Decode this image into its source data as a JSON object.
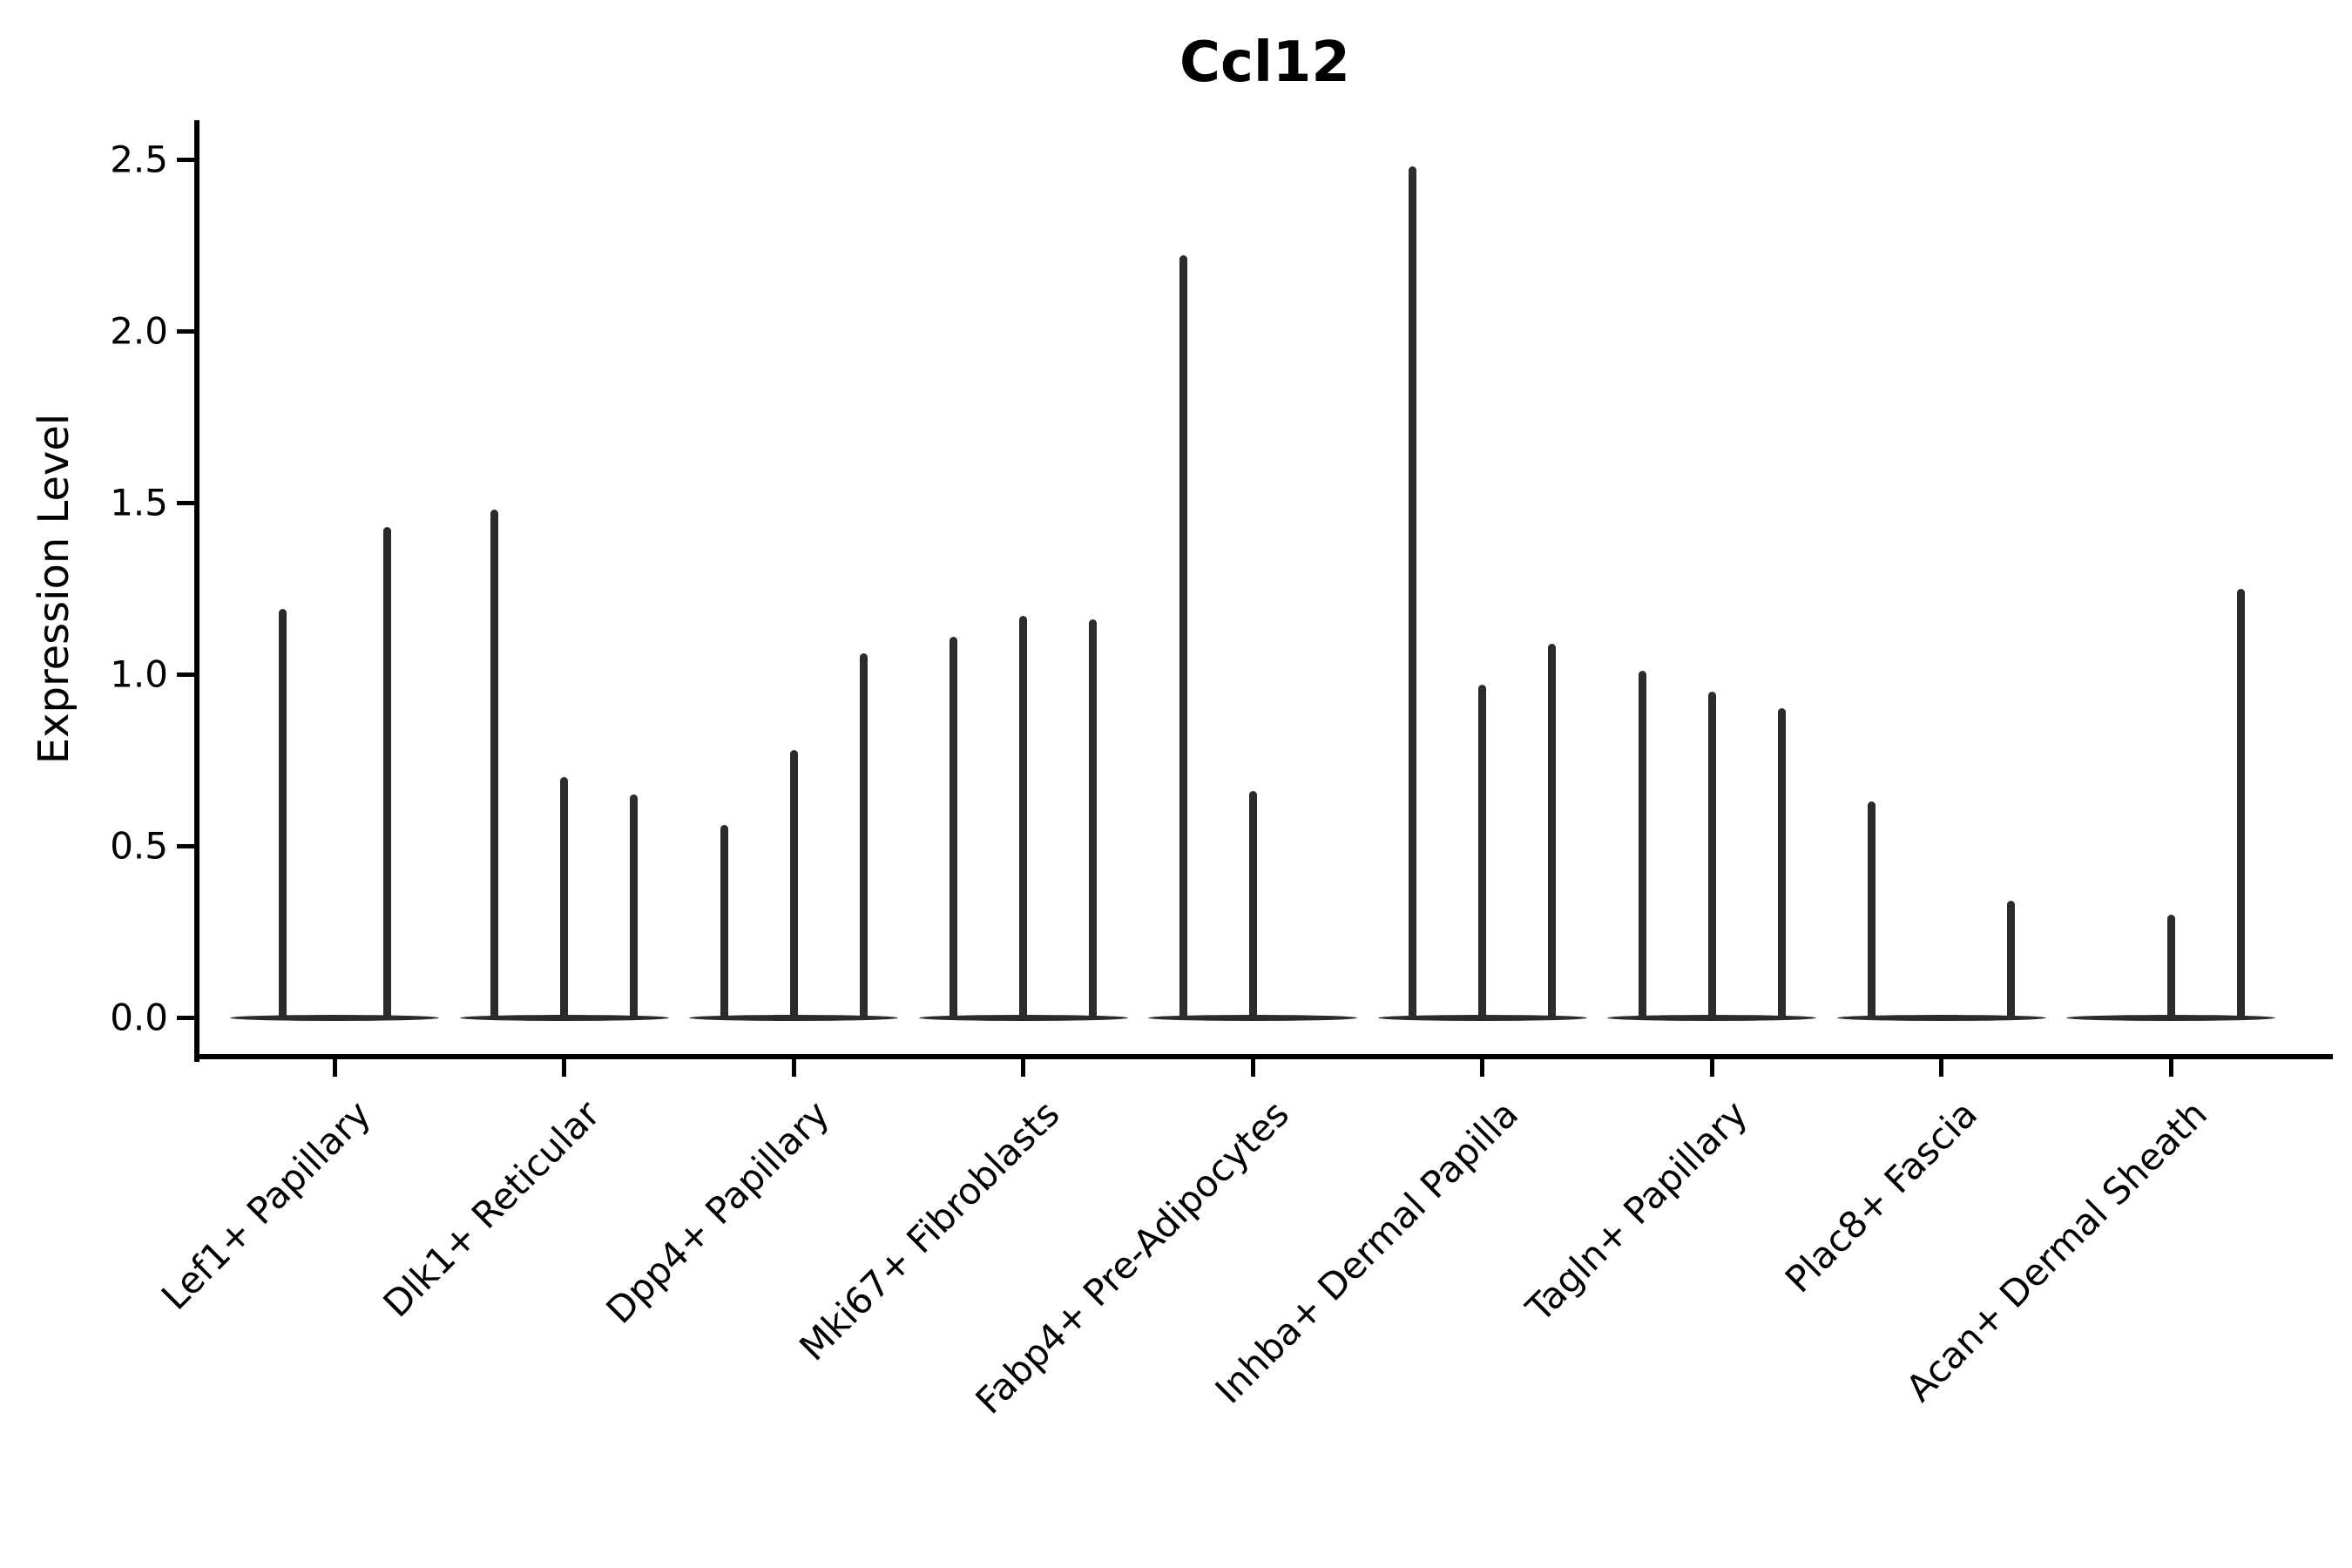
{
  "chart_data": {
    "type": "violin",
    "title": "Ccl12",
    "ylabel": "Expression Level",
    "xlabel": "",
    "ylim": [
      -0.11,
      2.61
    ],
    "yticks": [
      0.0,
      0.5,
      1.0,
      1.5,
      2.0,
      2.5
    ],
    "ytick_labels": [
      "0.0",
      "0.5",
      "1.0",
      "1.5",
      "2.0",
      "2.5"
    ],
    "grid": false,
    "legend": "none",
    "categories": [
      "Lef1+ Papillary",
      "Dlk1+ Reticular",
      "Dpp4+ Papillary",
      "Mki67+ Fibroblasts",
      "Fabp4+ Pre-Adipocytes",
      "Inhba+ Dermal Papilla",
      "Tagln+ Papillary",
      "Plac8+ Fascia",
      "Acan+ Dermal Sheath"
    ],
    "groups": [
      {
        "category": "Lef1+ Papillary",
        "violin_max_values": [
          1.19,
          1.43
        ]
      },
      {
        "category": "Dlk1+ Reticular",
        "violin_max_values": [
          1.48,
          0.7,
          0.65
        ]
      },
      {
        "category": "Dpp4+ Papillary",
        "violin_max_values": [
          0.56,
          0.78,
          1.06
        ]
      },
      {
        "category": "Mki67+ Fibroblasts",
        "violin_max_values": [
          1.11,
          1.17,
          1.16
        ]
      },
      {
        "category": "Fabp4+ Pre-Adipocytes",
        "violin_max_values": [
          2.22,
          0.66,
          0.0
        ]
      },
      {
        "category": "Inhba+ Dermal Papilla",
        "violin_max_values": [
          2.48,
          0.97,
          1.09
        ]
      },
      {
        "category": "Tagln+ Papillary",
        "violin_max_values": [
          1.01,
          0.95,
          0.9
        ]
      },
      {
        "category": "Plac8+ Fascia",
        "violin_max_values": [
          0.63,
          0.0,
          0.34
        ]
      },
      {
        "category": "Acan+ Dermal Sheath",
        "violin_max_values": [
          0.0,
          0.3,
          1.25
        ]
      }
    ],
    "colors": {
      "violin": "#2b2b2b",
      "axis": "#000000",
      "text": "#000000",
      "background": "#ffffff"
    }
  }
}
